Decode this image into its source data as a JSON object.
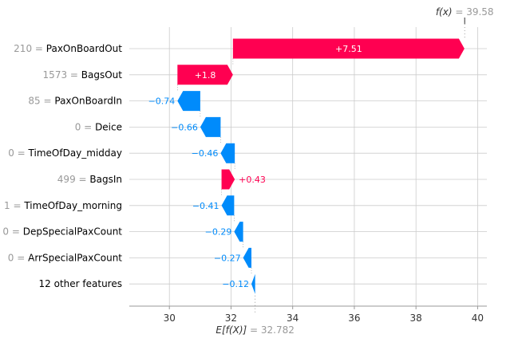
{
  "chart_data": {
    "type": "waterfall",
    "base_value": 32.782,
    "output_value": 39.58,
    "fx_label": "f(x)",
    "fx_value_text": "= 39.58",
    "efx_label": "E[f(X)]",
    "efx_value_text": "= 32.782",
    "xlim": [
      28.7,
      40.3
    ],
    "xticks": [
      30,
      32,
      34,
      36,
      38,
      40
    ],
    "features": [
      {
        "value": "210",
        "name": "PaxOnBoardOut",
        "contribution": 7.51,
        "label": "+7.51"
      },
      {
        "value": "1573",
        "name": "BagsOut",
        "contribution": 1.8,
        "label": "+1.8"
      },
      {
        "value": "85",
        "name": "PaxOnBoardIn",
        "contribution": -0.74,
        "label": "−0.74"
      },
      {
        "value": "0",
        "name": "Deice",
        "contribution": -0.66,
        "label": "−0.66"
      },
      {
        "value": "0",
        "name": "TimeOfDay_midday",
        "contribution": -0.46,
        "label": "−0.46"
      },
      {
        "value": "499",
        "name": "BagsIn",
        "contribution": 0.43,
        "label": "+0.43"
      },
      {
        "value": "1",
        "name": "TimeOfDay_morning",
        "contribution": -0.41,
        "label": "−0.41"
      },
      {
        "value": "0",
        "name": "DepSpecialPaxCount",
        "contribution": -0.29,
        "label": "−0.29"
      },
      {
        "value": "0",
        "name": "ArrSpecialPaxCount",
        "contribution": -0.27,
        "label": "−0.27"
      },
      {
        "value": "",
        "name": "12 other features",
        "contribution": -0.12,
        "label": "−0.12"
      }
    ],
    "colors": {
      "positive": "#ff0051",
      "negative": "#008bfb",
      "grid": "#cccccc",
      "axis": "#999999",
      "label_value": "#999999",
      "label_name": "#000000"
    }
  }
}
